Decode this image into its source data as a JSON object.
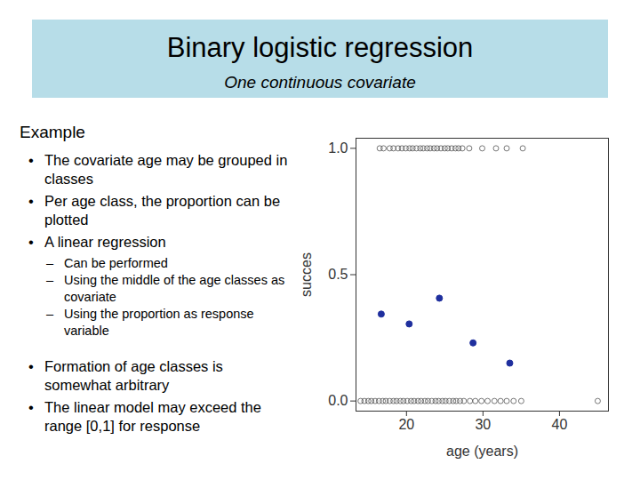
{
  "slide": {
    "title": "Binary logistic regression",
    "subtitle": "One continuous covariate",
    "heading": "Example",
    "bullets": [
      {
        "text": "The covariate age may be grouped in classes"
      },
      {
        "text": "Per age class, the proportion can be plotted"
      },
      {
        "text": "A linear regression",
        "sub": [
          "Can be performed",
          "Using the middle of the age classes as covariate",
          "Using the proportion as response variable"
        ]
      },
      {
        "text": "Formation of age classes is somewhat arbitrary"
      },
      {
        "text": "The linear model may exceed the range [0,1] for response"
      }
    ]
  },
  "chart_data": {
    "type": "scatter",
    "x_label": "age (years)",
    "y_label": "succes",
    "xlim": [
      13.4,
      46.4
    ],
    "ylim": [
      -0.04,
      1.04
    ],
    "xticks": [
      20,
      30,
      40
    ],
    "yticks": [
      {
        "value": 0,
        "label": "0.0"
      },
      {
        "value": 0.5,
        "label": "0.5"
      },
      {
        "value": 1,
        "label": "1.0"
      }
    ],
    "series": [
      {
        "marker": "open_circle",
        "color": "#555555",
        "x": [
          16.5,
          17,
          17.8,
          18.3,
          18.9,
          19.4,
          19.9,
          20.4,
          20.8,
          21.3,
          21.8,
          22.2,
          22.7,
          23.1,
          23.6,
          24,
          24.5,
          25,
          25.4,
          25.9,
          26.4,
          26.8,
          27.3,
          28.2,
          29.9,
          31.7,
          33.1,
          35.2
        ],
        "values": [
          1,
          1,
          1,
          1,
          1,
          1,
          1,
          1,
          1,
          1,
          1,
          1,
          1,
          1,
          1,
          1,
          1,
          1,
          1,
          1,
          1,
          1,
          1,
          1,
          1,
          1,
          1,
          1
        ]
      },
      {
        "marker": "open_circle",
        "color": "#555555",
        "x": [
          14,
          14.5,
          15,
          15.4,
          15.9,
          16.4,
          16.9,
          17.3,
          17.8,
          18.3,
          18.7,
          19.2,
          19.6,
          20.1,
          20.6,
          21,
          21.5,
          21.9,
          22.4,
          22.8,
          23.3,
          23.8,
          24.2,
          24.7,
          25.1,
          25.6,
          26.1,
          26.5,
          27,
          27.5,
          28.3,
          29,
          29.8,
          30.6,
          31.5,
          32.3,
          33.1,
          34,
          35,
          45
        ],
        "values": [
          0,
          0,
          0,
          0,
          0,
          0,
          0,
          0,
          0,
          0,
          0,
          0,
          0,
          0,
          0,
          0,
          0,
          0,
          0,
          0,
          0,
          0,
          0,
          0,
          0,
          0,
          0,
          0,
          0,
          0,
          0,
          0,
          0,
          0,
          0,
          0,
          0,
          0,
          0,
          0
        ]
      },
      {
        "marker": "circle",
        "color": "#1f2f9e",
        "x": [
          16.7,
          20.35,
          24.3,
          28.7,
          33.5
        ],
        "values": [
          0.344,
          0.305,
          0.407,
          0.23,
          0.15
        ]
      }
    ]
  }
}
